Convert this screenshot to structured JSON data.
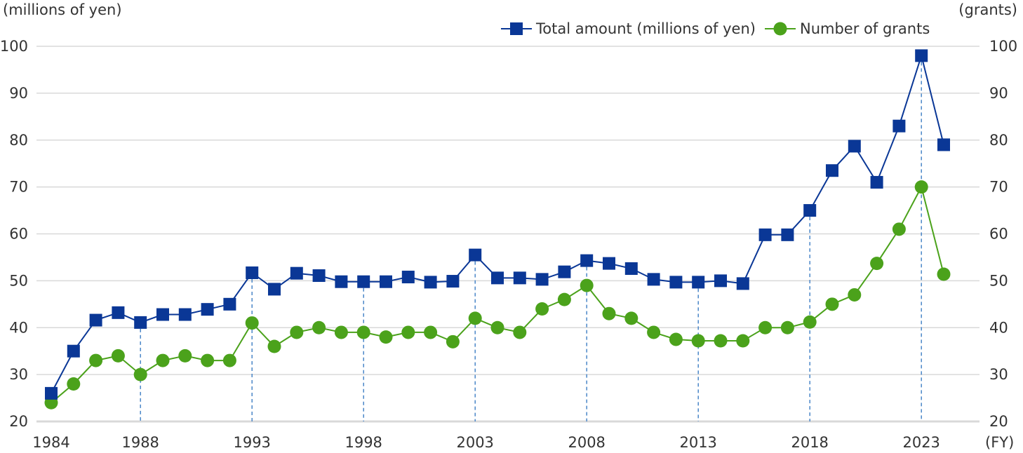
{
  "chart_data": {
    "type": "line",
    "left_axis_title": "(millions of yen)",
    "right_axis_title": "(grants)",
    "x_unit_label": "(FY)",
    "ylim": [
      20,
      100
    ],
    "y_ticks": [
      20,
      30,
      40,
      50,
      60,
      70,
      80,
      90,
      100
    ],
    "x_range": [
      1984,
      2024
    ],
    "x_tick_years": [
      1984,
      1988,
      1993,
      1998,
      2003,
      2008,
      2013,
      2018,
      2023
    ],
    "guide_years": [
      1988,
      1993,
      1998,
      2003,
      2008,
      2013,
      2018,
      2023
    ],
    "x": [
      1984,
      1985,
      1986,
      1987,
      1988,
      1989,
      1990,
      1991,
      1992,
      1993,
      1994,
      1995,
      1996,
      1997,
      1998,
      1999,
      2000,
      2001,
      2002,
      2003,
      2004,
      2005,
      2006,
      2007,
      2008,
      2009,
      2010,
      2011,
      2012,
      2013,
      2014,
      2015,
      2016,
      2017,
      2018,
      2019,
      2020,
      2021,
      2022,
      2023,
      2024
    ],
    "series": [
      {
        "name": "Total amount (millions of yen)",
        "color": "#0a3796",
        "marker": "square",
        "values": [
          26,
          35,
          41.6,
          43.2,
          41.1,
          42.8,
          42.8,
          43.9,
          45,
          51.7,
          48.2,
          51.6,
          51.1,
          49.8,
          49.8,
          49.8,
          50.8,
          49.7,
          49.9,
          55.5,
          50.6,
          50.6,
          50.3,
          51.9,
          54.3,
          53.7,
          52.6,
          50.3,
          49.7,
          49.7,
          50,
          49.4,
          59.8,
          59.8,
          65,
          73.5,
          78.7,
          71,
          83,
          98,
          79
        ]
      },
      {
        "name": "Number of grants",
        "color": "#4ba21b",
        "marker": "circle",
        "values": [
          24,
          28,
          33,
          34,
          30,
          33,
          34,
          33,
          33,
          41,
          36,
          39,
          40,
          39,
          39,
          38,
          39,
          39,
          37,
          42,
          40,
          39,
          44,
          46,
          49,
          43,
          42,
          39,
          37.5,
          37.2,
          37.2,
          37.2,
          40,
          40,
          41.2,
          45,
          47,
          53.7,
          61,
          70,
          51.4
        ]
      }
    ]
  }
}
